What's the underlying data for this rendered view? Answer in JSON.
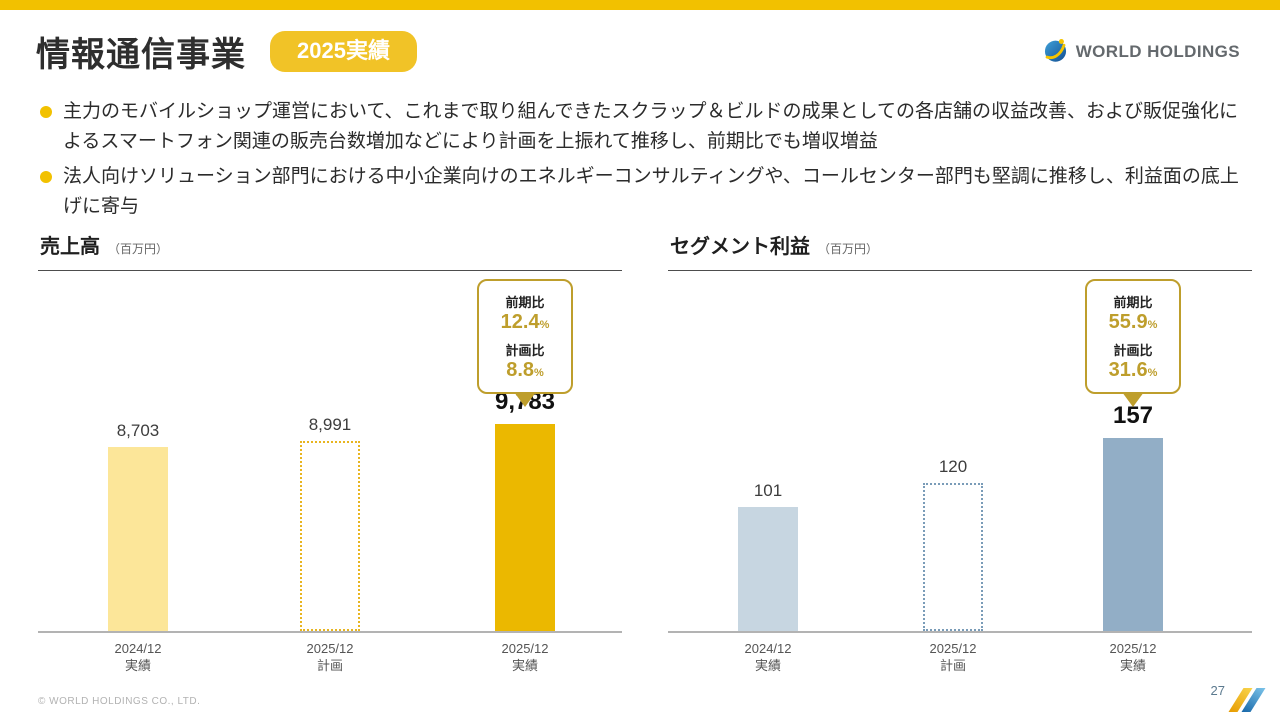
{
  "header": {
    "title": "情報通信事業",
    "badge": "2025実績",
    "logo_text": "WORLD HOLDINGS"
  },
  "bullets": [
    "主力のモバイルショップ運営において、これまで取り組んできたスクラップ＆ビルドの成果としての各店舗の収益改善、および販促強化によるスマートフォン関連の販売台数増加などにより計画を上振れて推移し、前期比でも増収増益",
    "法人向けソリューション部門における中小企業向けのエネルギーコンサルティングや、コールセンター部門も堅調に推移し、利益面の底上げに寄与"
  ],
  "chart_data": [
    {
      "type": "bar",
      "title": "売上高",
      "unit_label": "（百万円）",
      "categories": [
        {
          "line1": "2024/12",
          "line2": "実績"
        },
        {
          "line1": "2025/12",
          "line2": "計画"
        },
        {
          "line1": "2025/12",
          "line2": "実績"
        }
      ],
      "values": [
        8703,
        8991,
        9783
      ],
      "value_labels": [
        "8,703",
        "8,991",
        "9,783"
      ],
      "bar_styles": [
        "solid-light",
        "dotted",
        "solid-strong"
      ],
      "ylim": [
        0,
        10000
      ],
      "grid": false,
      "legend": "none",
      "colors": {
        "bar_light": "#FCE699",
        "bar_strong": "#EBB800",
        "dotted_border": "#E8B520"
      },
      "callout": {
        "rows": [
          {
            "label": "前期比",
            "value": "12.4",
            "suffix": "%"
          },
          {
            "label": "計画比",
            "value": "8.8",
            "suffix": "%"
          }
        ]
      }
    },
    {
      "type": "bar",
      "title": "セグメント利益",
      "unit_label": "（百万円）",
      "categories": [
        {
          "line1": "2024/12",
          "line2": "実績"
        },
        {
          "line1": "2025/12",
          "line2": "計画"
        },
        {
          "line1": "2025/12",
          "line2": "実績"
        }
      ],
      "values": [
        101,
        120,
        157
      ],
      "value_labels": [
        "101",
        "120",
        "157"
      ],
      "bar_styles": [
        "solid-light",
        "dotted",
        "solid-strong"
      ],
      "ylim": [
        0,
        160
      ],
      "grid": false,
      "legend": "none",
      "colors": {
        "bar_light": "#C7D6E1",
        "bar_strong": "#92AEC6",
        "dotted_border": "#7A9CB8"
      },
      "callout": {
        "rows": [
          {
            "label": "前期比",
            "value": "55.9",
            "suffix": "%"
          },
          {
            "label": "計画比",
            "value": "31.6",
            "suffix": "%"
          }
        ]
      }
    }
  ],
  "footer": {
    "copyright": "© WORLD HOLDINGS CO., LTD.",
    "page_number": "27"
  },
  "theme": {
    "accent_yellow": "#F2C100",
    "badge_yellow": "#F1C327",
    "callout_gold": "#BE9E2C",
    "revenue_bar_light": "#FCE699",
    "revenue_bar_strong": "#EBB800",
    "profit_bar_light": "#C7D6E1",
    "profit_bar_strong": "#92AEC6",
    "axis_gray": "#B3B3B3"
  }
}
